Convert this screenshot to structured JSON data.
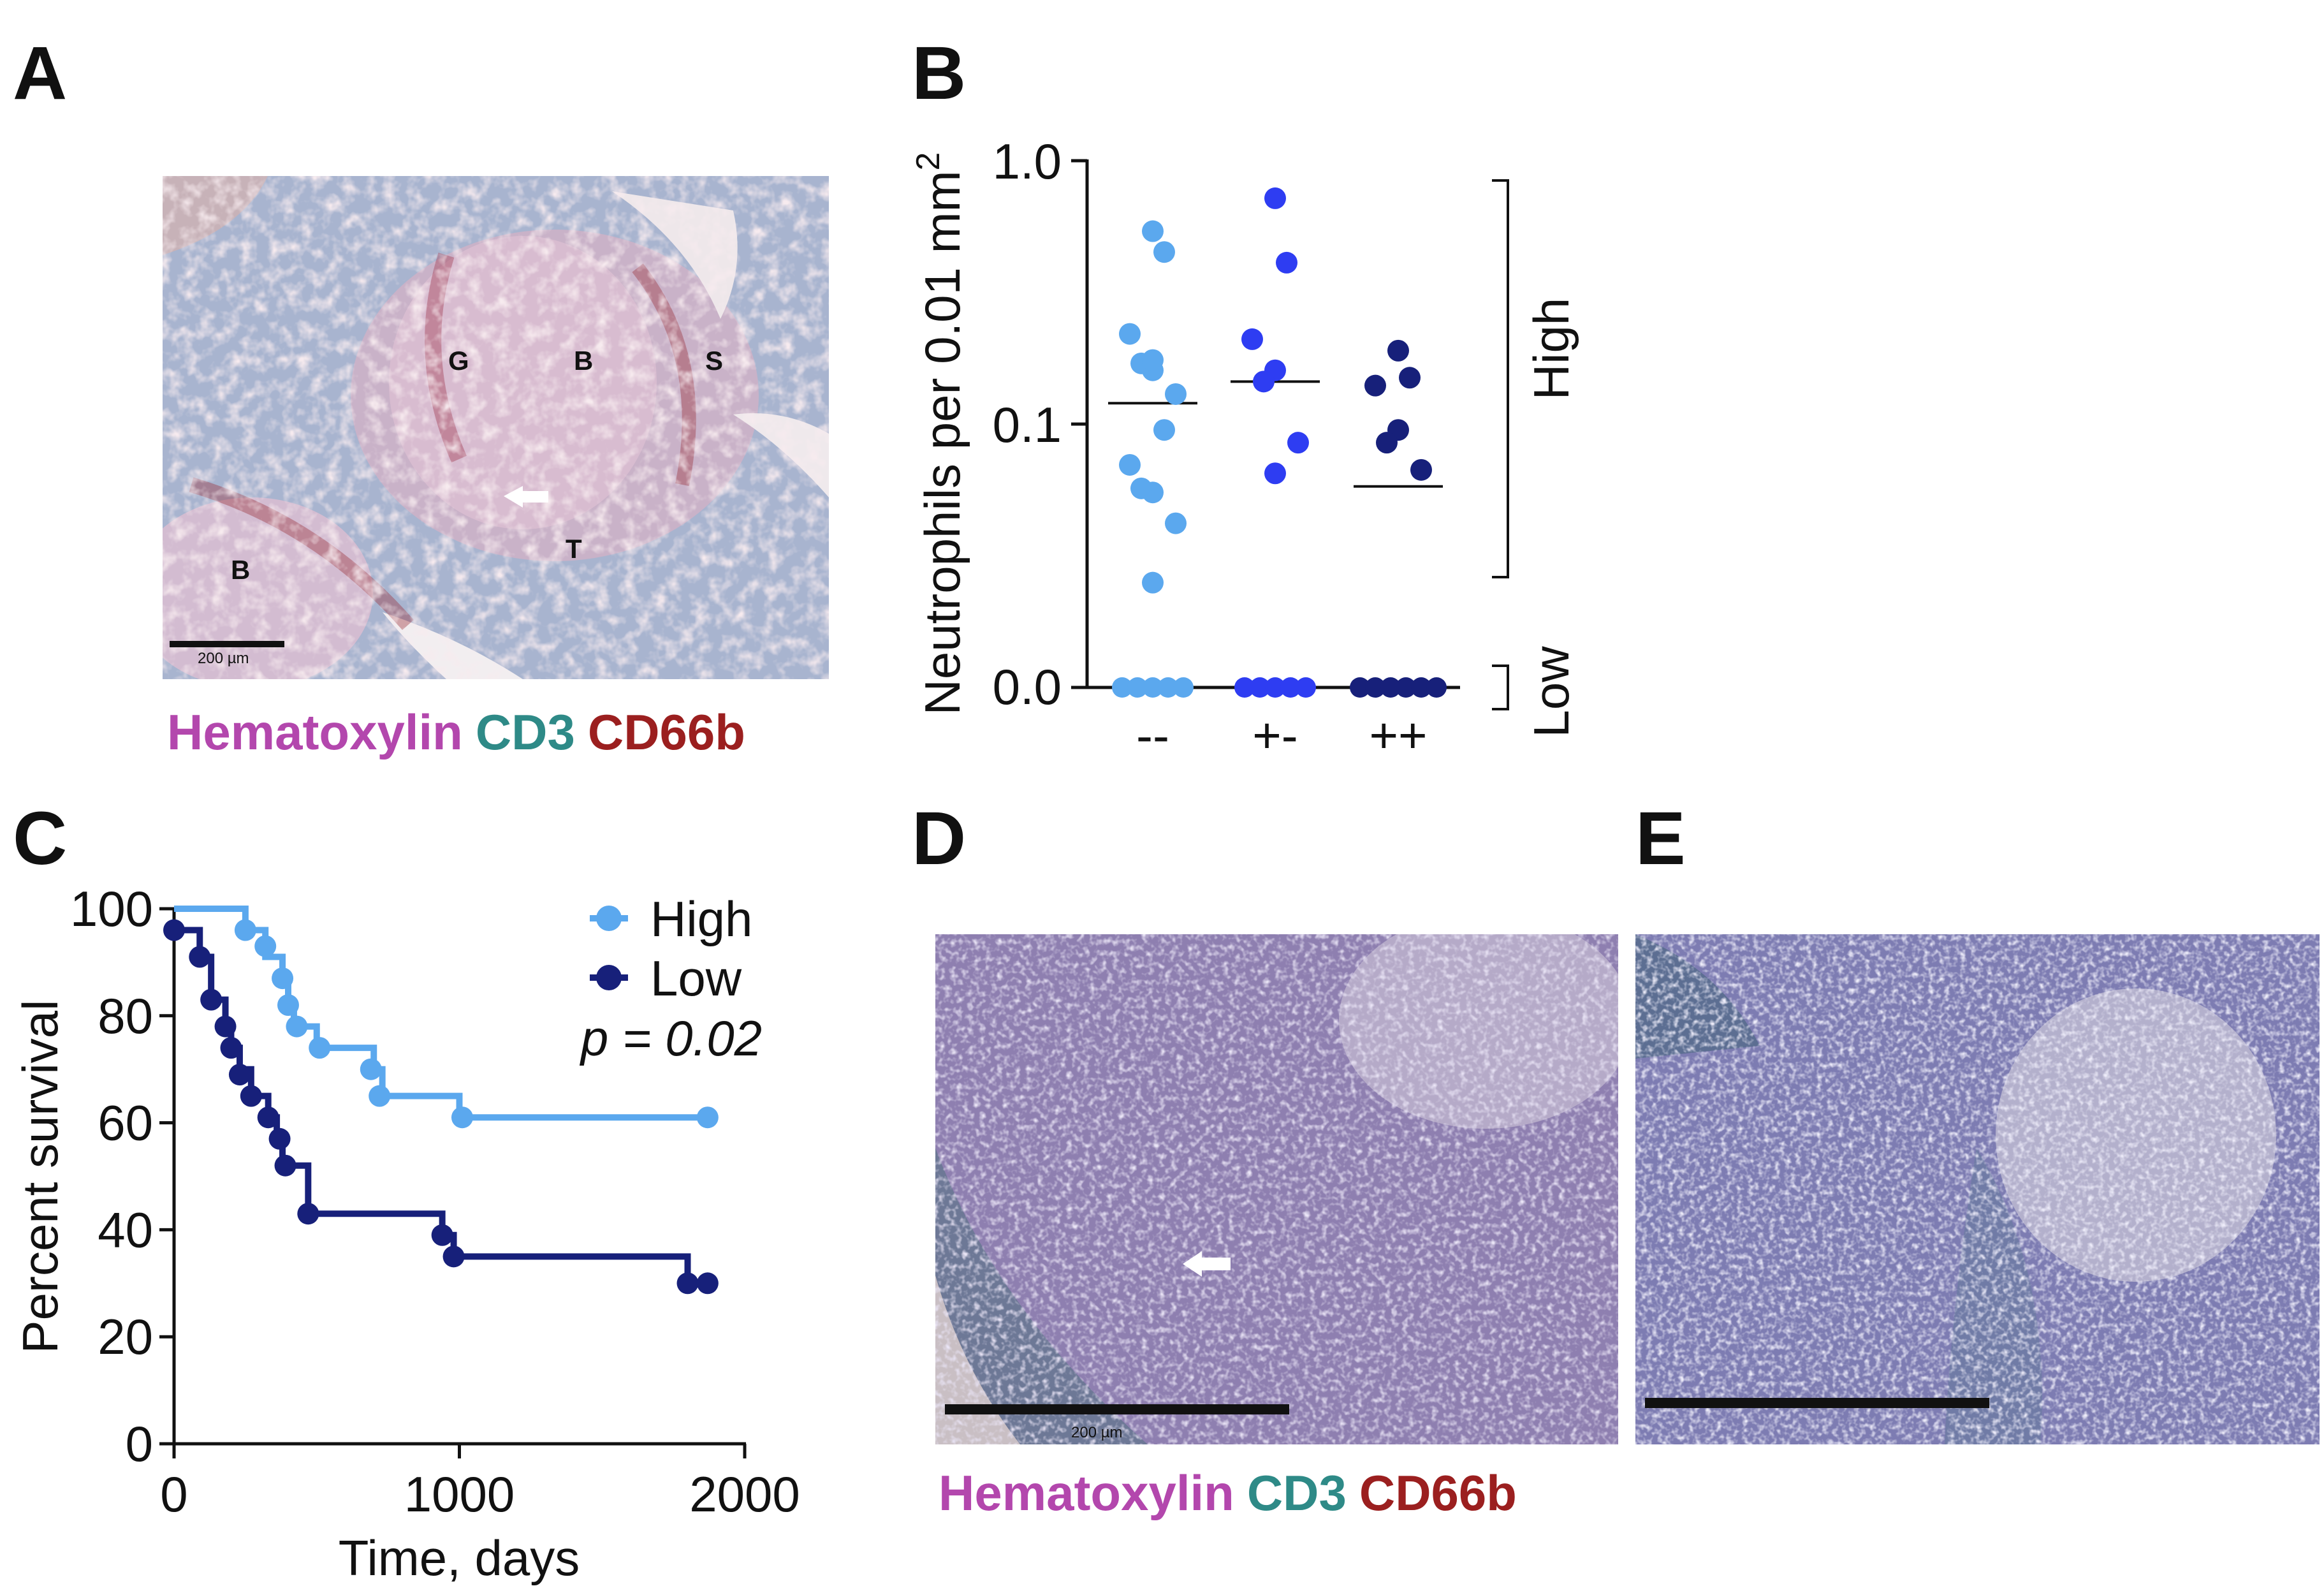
{
  "panels": {
    "a": {
      "letter": "A",
      "regions": [
        "G",
        "B",
        "S",
        "T",
        "B"
      ],
      "scale_bar": "200 µm",
      "stain_legend": [
        {
          "name": "Hematoxylin",
          "color": "#b347ad"
        },
        {
          "name": "CD3",
          "color": "#2e8a87"
        },
        {
          "name": "CD66b",
          "color": "#9b1f1f"
        }
      ]
    },
    "b": {
      "letter": "B"
    },
    "c": {
      "letter": "C"
    },
    "d": {
      "letter": "D",
      "scale_bar": "200 µm",
      "stain_legend": [
        {
          "name": "Hematoxylin",
          "color": "#b347ad"
        },
        {
          "name": "CD3",
          "color": "#2e8a87"
        },
        {
          "name": "CD66b",
          "color": "#9b1f1f"
        }
      ]
    },
    "e": {
      "letter": "E"
    }
  },
  "chart_data": [
    {
      "id": "B",
      "type": "scatter",
      "ylabel": "Neutrophils per 0.01 mm²",
      "ylabel_main": "Neutrophils per 0.01 mm",
      "ylabel_sup": "2",
      "yscale": "log with zero break",
      "yticks": [
        "1.0",
        "0.1",
        "0.0"
      ],
      "categories": [
        "--",
        "+-",
        "++"
      ],
      "series": [
        {
          "name": "--",
          "color": "#5ba8ee",
          "median": 0.12,
          "values": [
            0.54,
            0.45,
            0.22,
            0.16,
            0.17,
            0.13,
            0.175,
            0.095,
            0.07,
            0.055,
            0.057,
            0.042,
            0.025,
            0,
            0,
            0,
            0,
            0
          ]
        },
        {
          "name": "+-",
          "color": "#2e3df2",
          "median": 0.145,
          "values": [
            0.72,
            0.41,
            0.21,
            0.16,
            0.145,
            0.085,
            0.065,
            0,
            0,
            0,
            0,
            0
          ]
        },
        {
          "name": "++",
          "color": "#17207a",
          "median": 0.058,
          "values": [
            0.19,
            0.15,
            0.14,
            0.095,
            0.085,
            0.067,
            0,
            0,
            0,
            0,
            0,
            0
          ]
        }
      ],
      "groups": [
        {
          "label": "High"
        },
        {
          "label": "Low"
        }
      ]
    },
    {
      "id": "C",
      "type": "line",
      "xlabel": "Time, days",
      "ylabel": "Percent survival",
      "xlim": [
        0,
        2000
      ],
      "ylim": [
        0,
        100
      ],
      "xticks": [
        0,
        1000,
        2000
      ],
      "yticks": [
        0,
        20,
        40,
        60,
        80,
        100
      ],
      "annotation": "p = 0.02",
      "series": [
        {
          "name": "High",
          "color": "#5ba8ee",
          "steps": [
            [
              0,
              100
            ],
            [
              250,
              96
            ],
            [
              320,
              91
            ],
            [
              380,
              87
            ],
            [
              400,
              82
            ],
            [
              420,
              78
            ],
            [
              500,
              74
            ],
            [
              700,
              70
            ],
            [
              730,
              65
            ],
            [
              1000,
              61
            ],
            [
              1890,
              61
            ]
          ],
          "censored": [
            [
              250,
              96
            ],
            [
              320,
              93
            ],
            [
              380,
              87
            ],
            [
              400,
              82
            ],
            [
              430,
              78
            ],
            [
              510,
              74
            ],
            [
              690,
              70
            ],
            [
              720,
              65
            ],
            [
              1010,
              61
            ],
            [
              1870,
              61
            ]
          ]
        },
        {
          "name": "Low",
          "color": "#17207a",
          "steps": [
            [
              0,
              96
            ],
            [
              90,
              91
            ],
            [
              130,
              83
            ],
            [
              180,
              78
            ],
            [
              200,
              74
            ],
            [
              230,
              70
            ],
            [
              270,
              65
            ],
            [
              330,
              61
            ],
            [
              360,
              57
            ],
            [
              380,
              52
            ],
            [
              470,
              43
            ],
            [
              940,
              39
            ],
            [
              980,
              35
            ],
            [
              1800,
              30
            ],
            [
              1890,
              30
            ]
          ],
          "censored": [
            [
              0,
              96
            ],
            [
              90,
              91
            ],
            [
              130,
              83
            ],
            [
              180,
              78
            ],
            [
              200,
              74
            ],
            [
              230,
              69
            ],
            [
              270,
              65
            ],
            [
              330,
              61
            ],
            [
              370,
              57
            ],
            [
              390,
              52
            ],
            [
              470,
              43
            ],
            [
              940,
              39
            ],
            [
              980,
              35
            ],
            [
              1800,
              30
            ],
            [
              1870,
              30
            ]
          ]
        }
      ]
    }
  ]
}
